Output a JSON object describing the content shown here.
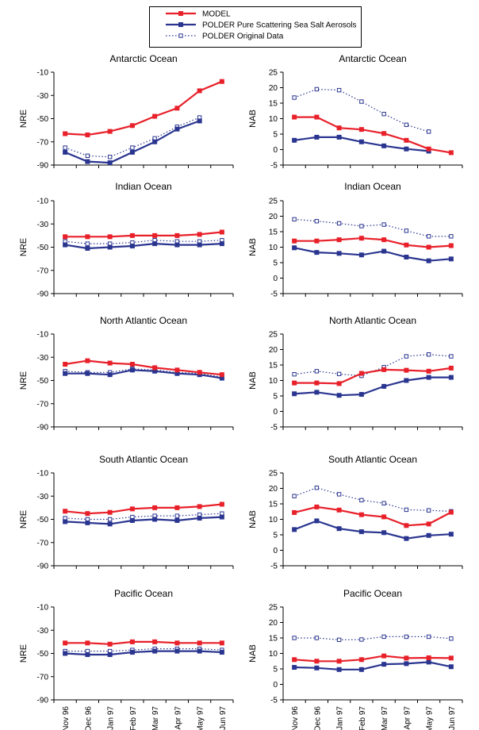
{
  "legend": [
    {
      "label": "MODEL",
      "color": "#e8202a",
      "style": "solid",
      "marker": "filled-square"
    },
    {
      "label": "POLDER Pure Scattering Sea Salt Aerosols",
      "color": "#2a3590",
      "style": "solid",
      "marker": "filled-square"
    },
    {
      "label": "POLDER Original Data",
      "color": "#2a3590",
      "style": "dotted",
      "marker": "open-square"
    }
  ],
  "colors": {
    "model": "#e8202a",
    "polder": "#2a3590"
  },
  "chart_data": [
    {
      "type": "line",
      "title": "Antarctic Ocean",
      "ylabel": "NRE",
      "ylim": [
        -90,
        -10
      ],
      "yticks": [
        -10,
        -30,
        -50,
        -70,
        -90
      ],
      "categories": [
        "Nov 96",
        "Dec 96",
        "Jan 97",
        "Feb 97",
        "Mar 97",
        "Apr 97",
        "May 97",
        "Jun 97"
      ],
      "series": [
        {
          "name": "MODEL",
          "values": [
            -63,
            -64,
            -61,
            -56,
            -48,
            -41,
            -26,
            -18
          ]
        },
        {
          "name": "POLDER Pure Scattering Sea Salt Aerosols",
          "values": [
            -79,
            -87,
            -88,
            -79,
            -70,
            -59,
            -52,
            null
          ]
        },
        {
          "name": "POLDER Original Data",
          "values": [
            -75,
            -82,
            -83,
            -75,
            -67,
            -57,
            -49,
            null
          ]
        }
      ]
    },
    {
      "type": "line",
      "title": "Antarctic Ocean",
      "ylabel": "NAB",
      "ylim": [
        -5,
        25
      ],
      "yticks": [
        25,
        20,
        15,
        10,
        5,
        0,
        -5
      ],
      "categories": [
        "Nov 96",
        "Dec 96",
        "Jan 97",
        "Feb 97",
        "Mar 97",
        "Apr 97",
        "May 97",
        "Jun 97"
      ],
      "series": [
        {
          "name": "MODEL",
          "values": [
            10.5,
            10.5,
            7,
            6.5,
            5.2,
            3,
            0.2,
            -1
          ]
        },
        {
          "name": "POLDER Pure Scattering Sea Salt Aerosols",
          "values": [
            3,
            4,
            4,
            2.5,
            1.2,
            0.2,
            -0.5,
            null
          ]
        },
        {
          "name": "POLDER Original Data",
          "values": [
            16.8,
            19.5,
            19.2,
            15.5,
            11.5,
            8,
            5.8,
            null
          ]
        }
      ]
    },
    {
      "type": "line",
      "title": "Indian Ocean",
      "ylabel": "NRE",
      "ylim": [
        -90,
        -10
      ],
      "yticks": [
        -10,
        -30,
        -50,
        -70,
        -90
      ],
      "categories": [
        "Nov 96",
        "Dec 96",
        "Jan 97",
        "Feb 97",
        "Mar 97",
        "Apr 97",
        "May 97",
        "Jun 97"
      ],
      "series": [
        {
          "name": "MODEL",
          "values": [
            -41,
            -41,
            -41,
            -40,
            -40,
            -40,
            -39,
            -37
          ]
        },
        {
          "name": "POLDER Pure Scattering Sea Salt Aerosols",
          "values": [
            -48,
            -51,
            -50,
            -49,
            -47,
            -48,
            -48,
            -47
          ]
        },
        {
          "name": "POLDER Original Data",
          "values": [
            -45,
            -47,
            -47,
            -46,
            -44,
            -45,
            -45,
            -44
          ]
        }
      ]
    },
    {
      "type": "line",
      "title": "Indian Ocean",
      "ylabel": "NAB",
      "ylim": [
        -5,
        25
      ],
      "yticks": [
        25,
        20,
        15,
        10,
        5,
        0,
        -5
      ],
      "categories": [
        "Nov 96",
        "Dec 96",
        "Jan 97",
        "Feb 97",
        "Mar 97",
        "Apr 97",
        "May 97",
        "Jun 97"
      ],
      "series": [
        {
          "name": "MODEL",
          "values": [
            12,
            12,
            12.4,
            12.9,
            12.4,
            10.7,
            10,
            10.5
          ]
        },
        {
          "name": "POLDER Pure Scattering Sea Salt Aerosols",
          "values": [
            9.8,
            8.3,
            8,
            7.5,
            8.7,
            6.8,
            5.6,
            6.2
          ]
        },
        {
          "name": "POLDER Original Data",
          "values": [
            19,
            18.4,
            17.7,
            16.8,
            17.3,
            15.3,
            13.5,
            13.5
          ]
        }
      ]
    },
    {
      "type": "line",
      "title": "North Atlantic Ocean",
      "ylabel": "NRE",
      "ylim": [
        -90,
        -10
      ],
      "yticks": [
        -10,
        -30,
        -50,
        -70,
        -90
      ],
      "categories": [
        "Nov 96",
        "Dec 96",
        "Jan 97",
        "Feb 97",
        "Mar 97",
        "Apr 97",
        "May 97",
        "Jun 97"
      ],
      "series": [
        {
          "name": "MODEL",
          "values": [
            -36,
            -33,
            -35,
            -36,
            -39,
            -41,
            -43,
            -45
          ]
        },
        {
          "name": "POLDER Pure Scattering Sea Salt Aerosols",
          "values": [
            -44,
            -44,
            -45,
            -41,
            -42,
            -44,
            -45,
            -48
          ]
        },
        {
          "name": "POLDER Original Data",
          "values": [
            -42,
            -43,
            -43,
            -40,
            -41,
            -43,
            -44,
            -47
          ]
        }
      ]
    },
    {
      "type": "line",
      "title": "North Atlantic Ocean",
      "ylabel": "NAB",
      "ylim": [
        -5,
        25
      ],
      "yticks": [
        25,
        20,
        15,
        10,
        5,
        0,
        -5
      ],
      "categories": [
        "Nov 96",
        "Dec 96",
        "Jan 97",
        "Feb 97",
        "Mar 97",
        "Apr 97",
        "May 97",
        "Jun 97"
      ],
      "series": [
        {
          "name": "MODEL",
          "values": [
            9.2,
            9.2,
            9,
            12.3,
            13.5,
            13.3,
            13,
            14
          ]
        },
        {
          "name": "POLDER Pure Scattering Sea Salt Aerosols",
          "values": [
            5.7,
            6.2,
            5.2,
            5.5,
            8.1,
            10,
            11,
            11
          ]
        },
        {
          "name": "POLDER Original Data",
          "values": [
            12,
            13,
            12.1,
            11.5,
            14.3,
            17.8,
            18.4,
            17.8
          ]
        }
      ]
    },
    {
      "type": "line",
      "title": "South Atlantic Ocean",
      "ylabel": "NRE",
      "ylim": [
        -90,
        -10
      ],
      "yticks": [
        -10,
        -30,
        -50,
        -70,
        -90
      ],
      "categories": [
        "Nov 96",
        "Dec 96",
        "Jan 97",
        "Feb 97",
        "Mar 97",
        "Apr 97",
        "May 97",
        "Jun 97"
      ],
      "series": [
        {
          "name": "MODEL",
          "values": [
            -43,
            -45,
            -44,
            -41,
            -40,
            -40,
            -39,
            -37
          ]
        },
        {
          "name": "POLDER Pure Scattering Sea Salt Aerosols",
          "values": [
            -52,
            -53,
            -54,
            -51,
            -50,
            -51,
            -49,
            -48
          ]
        },
        {
          "name": "POLDER Original Data",
          "values": [
            -49,
            -50,
            -50,
            -48,
            -47,
            -47,
            -46,
            -45
          ]
        }
      ]
    },
    {
      "type": "line",
      "title": "South Atlantic Ocean",
      "ylabel": "NAB",
      "ylim": [
        -5,
        25
      ],
      "yticks": [
        25,
        20,
        15,
        10,
        5,
        0,
        -5
      ],
      "categories": [
        "Nov 96",
        "Dec 96",
        "Jan 97",
        "Feb 97",
        "Mar 97",
        "Apr 97",
        "May 97",
        "Jun 97"
      ],
      "series": [
        {
          "name": "MODEL",
          "values": [
            12.2,
            14,
            13,
            11.5,
            10.8,
            8,
            8.5,
            12.3
          ]
        },
        {
          "name": "POLDER Pure Scattering Sea Salt Aerosols",
          "values": [
            6.7,
            9.5,
            7,
            6,
            5.7,
            3.8,
            4.8,
            5.2
          ]
        },
        {
          "name": "POLDER Original Data",
          "values": [
            17.5,
            20.2,
            18.1,
            16.2,
            15.2,
            13.1,
            12.9,
            12.6
          ]
        }
      ]
    },
    {
      "type": "line",
      "title": "Pacific Ocean",
      "ylabel": "NRE",
      "ylim": [
        -90,
        -10
      ],
      "yticks": [
        -10,
        -30,
        -50,
        -70,
        -90
      ],
      "categories": [
        "Nov 96",
        "Dec 96",
        "Jan 97",
        "Feb 97",
        "Mar 97",
        "Apr 97",
        "May 97",
        "Jun 97"
      ],
      "series": [
        {
          "name": "MODEL",
          "values": [
            -41,
            -41,
            -42,
            -40,
            -40,
            -41,
            -41,
            -41
          ]
        },
        {
          "name": "POLDER Pure Scattering Sea Salt Aerosols",
          "values": [
            -50,
            -51,
            -51,
            -49,
            -48,
            -48,
            -48,
            -49
          ]
        },
        {
          "name": "POLDER Original Data",
          "values": [
            -48,
            -48,
            -48,
            -47,
            -46,
            -46,
            -46,
            -47
          ]
        }
      ]
    },
    {
      "type": "line",
      "title": "Pacific Ocean",
      "ylabel": "NAB",
      "ylim": [
        -5,
        25
      ],
      "yticks": [
        25,
        20,
        15,
        10,
        5,
        0,
        -5
      ],
      "categories": [
        "Nov 96",
        "Dec 96",
        "Jan 97",
        "Feb 97",
        "Mar 97",
        "Apr 97",
        "May 97",
        "Jun 97"
      ],
      "series": [
        {
          "name": "MODEL",
          "values": [
            8,
            7.5,
            7.5,
            8,
            9.2,
            8.5,
            8.6,
            8.5
          ]
        },
        {
          "name": "POLDER Pure Scattering Sea Salt Aerosols",
          "values": [
            5.5,
            5.3,
            4.8,
            4.8,
            6.5,
            6.7,
            7.2,
            5.7
          ]
        },
        {
          "name": "POLDER Original Data",
          "values": [
            15,
            15,
            14.4,
            14.5,
            15.4,
            15.4,
            15.4,
            14.8
          ]
        }
      ]
    }
  ]
}
